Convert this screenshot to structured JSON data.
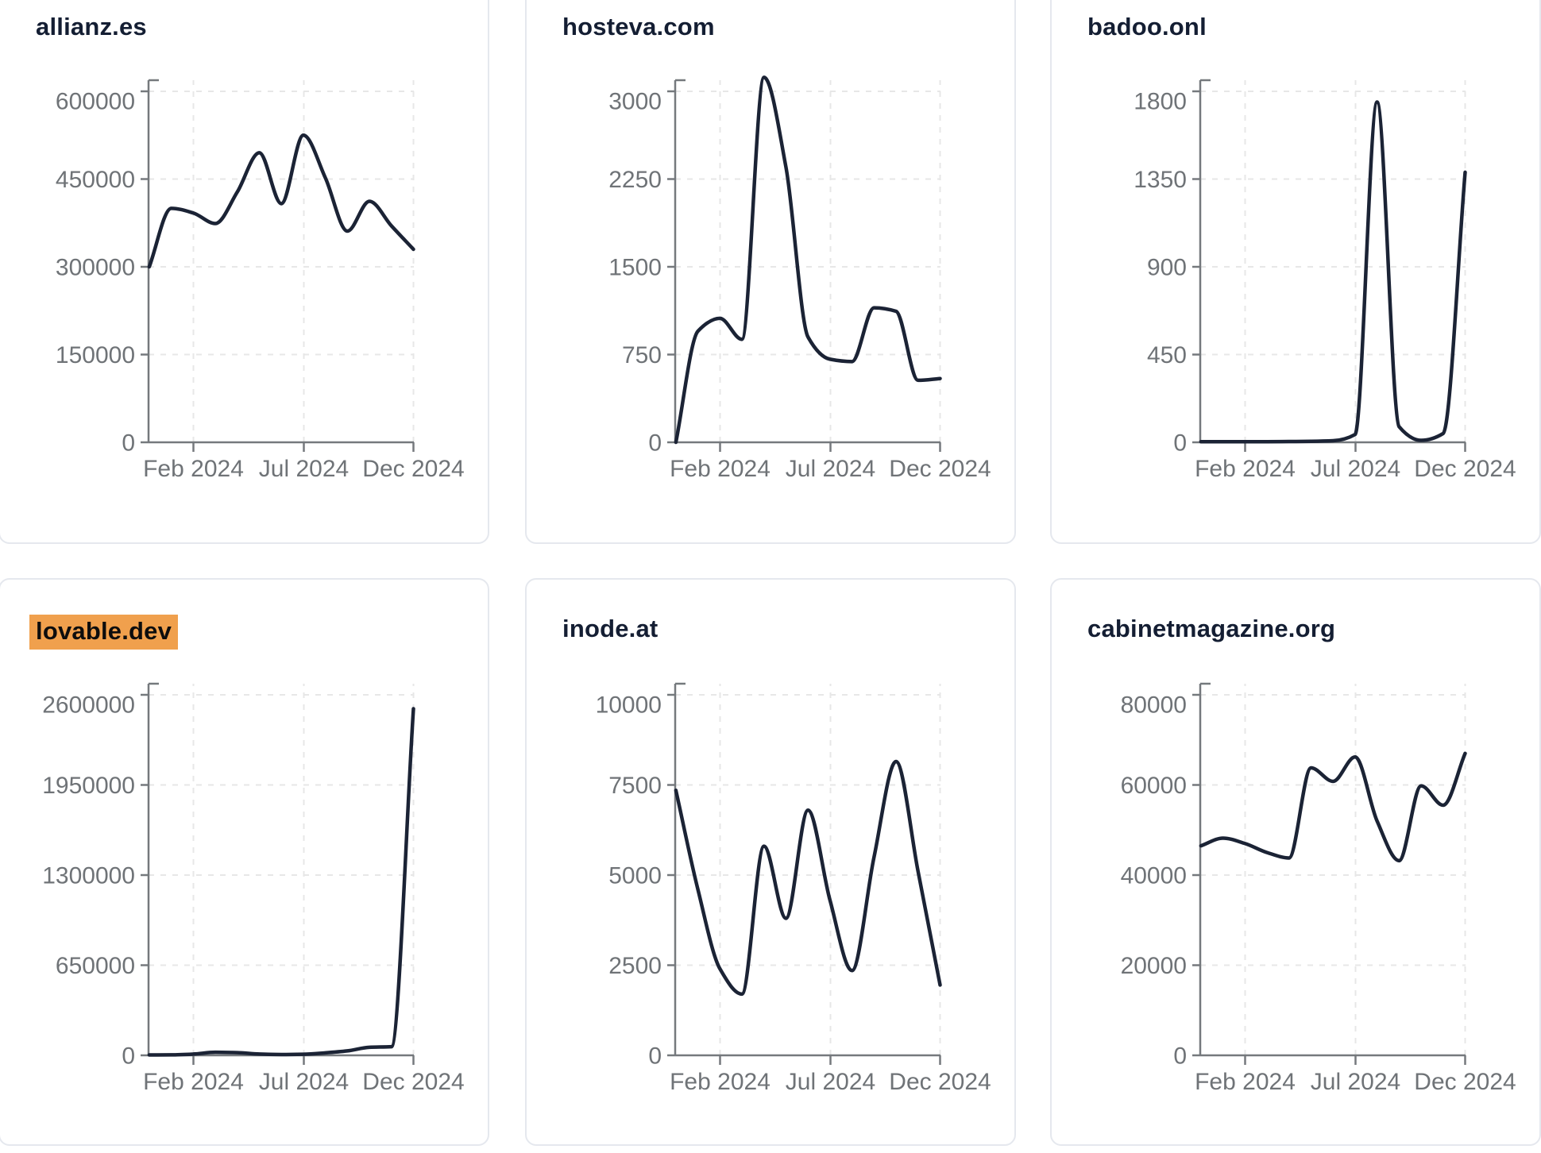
{
  "page": {
    "background": "#ffffff",
    "description_visible_text_only": true
  },
  "colors": {
    "line": "#1b2335",
    "title_color": "#141e33",
    "axis_color": "#75797d",
    "tick_label_color": "#6f7377",
    "grid_color": "#e7e7e7",
    "card_border": "#e5e8ee",
    "card_background": "#ffffff",
    "highlight_bg": "#f0a04d",
    "highlight_fg": "#0d0d0d"
  },
  "x_axis": {
    "tick_labels": [
      "Feb 2024",
      "Jul 2024",
      "Dec 2024"
    ]
  },
  "chart_data": [
    {
      "type": "line",
      "title": "allianz.es",
      "highlighted": false,
      "ylim": [
        0,
        600000
      ],
      "y_ticks": [
        0,
        150000,
        300000,
        450000,
        600000
      ],
      "x_tick_labels": [
        "Feb 2024",
        "Jul 2024",
        "Dec 2024"
      ],
      "months": [
        "Dec 2023",
        "Jan 2024",
        "Feb 2024",
        "Mar 2024",
        "Apr 2024",
        "May 2024",
        "Jun 2024",
        "Jul 2024",
        "Aug 2024",
        "Sep 2024",
        "Oct 2024",
        "Nov 2024",
        "Dec 2024"
      ],
      "values": [
        300000,
        400000,
        392000,
        374000,
        428000,
        495000,
        408000,
        525000,
        452000,
        361000,
        412000,
        370000,
        330000
      ],
      "grid": "dashed",
      "legend": "none"
    },
    {
      "type": "line",
      "title": "hosteva.com",
      "highlighted": false,
      "ylim": [
        0,
        3000
      ],
      "y_ticks": [
        0,
        750,
        1500,
        2250,
        3000
      ],
      "x_tick_labels": [
        "Feb 2024",
        "Jul 2024",
        "Dec 2024"
      ],
      "months": [
        "Dec 2023",
        "Jan 2024",
        "Feb 2024",
        "Mar 2024",
        "Apr 2024",
        "May 2024",
        "Jun 2024",
        "Jul 2024",
        "Aug 2024",
        "Sep 2024",
        "Oct 2024",
        "Nov 2024",
        "Dec 2024"
      ],
      "values": [
        0,
        950,
        1060,
        880,
        3120,
        2350,
        900,
        710,
        690,
        1150,
        1120,
        530,
        545
      ],
      "grid": "dashed",
      "legend": "none"
    },
    {
      "type": "line",
      "title": "badoo.onl",
      "highlighted": false,
      "ylim": [
        0,
        1800
      ],
      "y_ticks": [
        0,
        450,
        900,
        1350,
        1800
      ],
      "x_tick_labels": [
        "Feb 2024",
        "Jul 2024",
        "Dec 2024"
      ],
      "months": [
        "Dec 2023",
        "Jan 2024",
        "Feb 2024",
        "Mar 2024",
        "Apr 2024",
        "May 2024",
        "Jun 2024",
        "Jul 2024",
        "Aug 2024",
        "Sep 2024",
        "Oct 2024",
        "Nov 2024",
        "Dec 2024"
      ],
      "values": [
        3,
        3,
        3,
        3,
        4,
        5,
        8,
        40,
        1745,
        80,
        10,
        45,
        1385
      ],
      "grid": "dashed",
      "legend": "none"
    },
    {
      "type": "line",
      "title": "lovable.dev",
      "highlighted": true,
      "ylim": [
        0,
        2600000
      ],
      "y_ticks": [
        0,
        650000,
        1300000,
        1950000,
        2600000
      ],
      "x_tick_labels": [
        "Feb 2024",
        "Jul 2024",
        "Dec 2024"
      ],
      "months": [
        "Dec 2023",
        "Jan 2024",
        "Feb 2024",
        "Mar 2024",
        "Apr 2024",
        "May 2024",
        "Jun 2024",
        "Jul 2024",
        "Aug 2024",
        "Sep 2024",
        "Oct 2024",
        "Nov 2024",
        "Dec 2024"
      ],
      "values": [
        3000,
        3500,
        9000,
        22000,
        19000,
        9000,
        6000,
        8000,
        18000,
        32000,
        58000,
        62000,
        2500000
      ],
      "grid": "dashed",
      "legend": "none"
    },
    {
      "type": "line",
      "title": "inode.at",
      "highlighted": false,
      "ylim": [
        0,
        10000
      ],
      "y_ticks": [
        0,
        2500,
        5000,
        7500,
        10000
      ],
      "x_tick_labels": [
        "Feb 2024",
        "Jul 2024",
        "Dec 2024"
      ],
      "months": [
        "Dec 2023",
        "Jan 2024",
        "Feb 2024",
        "Mar 2024",
        "Apr 2024",
        "May 2024",
        "Jun 2024",
        "Jul 2024",
        "Aug 2024",
        "Sep 2024",
        "Oct 2024",
        "Nov 2024",
        "Dec 2024"
      ],
      "values": [
        7350,
        4600,
        2400,
        1700,
        5800,
        3800,
        6800,
        4300,
        2350,
        5500,
        8150,
        5100,
        1950
      ],
      "grid": "dashed",
      "legend": "none"
    },
    {
      "type": "line",
      "title": "cabinetmagazine.org",
      "highlighted": false,
      "ylim": [
        0,
        80000
      ],
      "y_ticks": [
        0,
        20000,
        40000,
        60000,
        80000
      ],
      "x_tick_labels": [
        "Feb 2024",
        "Jul 2024",
        "Dec 2024"
      ],
      "months": [
        "Dec 2023",
        "Jan 2024",
        "Feb 2024",
        "Mar 2024",
        "Apr 2024",
        "May 2024",
        "Jun 2024",
        "Jul 2024",
        "Aug 2024",
        "Sep 2024",
        "Oct 2024",
        "Nov 2024",
        "Dec 2024"
      ],
      "values": [
        46500,
        48200,
        47000,
        45000,
        43800,
        63800,
        60800,
        66200,
        52000,
        43200,
        59800,
        55500,
        67000
      ],
      "grid": "dashed",
      "legend": "none"
    }
  ]
}
